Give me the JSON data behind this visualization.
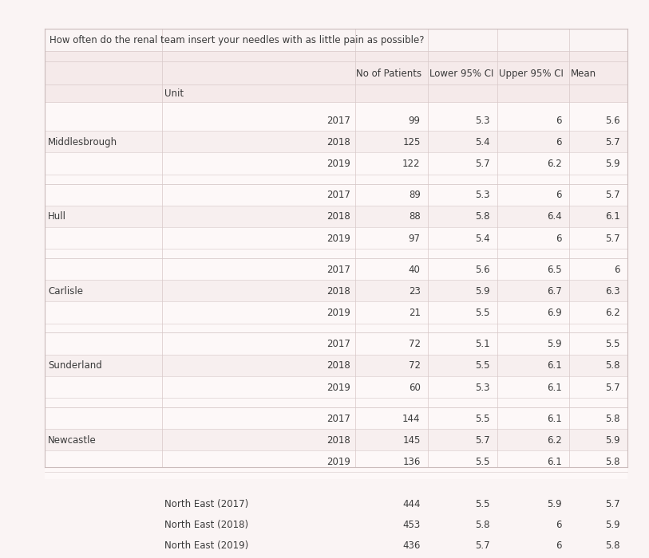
{
  "title": "How often do the renal team insert your needles with as little pain as possible?",
  "col_headers": [
    "No of Patients",
    "Lower 95% CI",
    "Upper 95% CI",
    "Mean"
  ],
  "sub_header_col1": "Unit",
  "bg_color": "#faf4f4",
  "table_bg": "#faf4f4",
  "row_light": "#fdf8f8",
  "row_mid": "#f5eaea",
  "row_dark": "#ede0e0",
  "separator_color": "#ddd0d0",
  "border_color": "#cbbcbc",
  "text_color": "#3a3a3a",
  "font_size": 8.5,
  "rows": [
    {
      "location": "Middlesbrough",
      "year": "2017",
      "patients": "99",
      "lower": "5.3",
      "upper": "6",
      "mean": "5.6"
    },
    {
      "location": "",
      "year": "2018",
      "patients": "125",
      "lower": "5.4",
      "upper": "6",
      "mean": "5.7"
    },
    {
      "location": "",
      "year": "2019",
      "patients": "122",
      "lower": "5.7",
      "upper": "6.2",
      "mean": "5.9"
    },
    {
      "location": "Hull",
      "year": "2017",
      "patients": "89",
      "lower": "5.3",
      "upper": "6",
      "mean": "5.7"
    },
    {
      "location": "",
      "year": "2018",
      "patients": "88",
      "lower": "5.8",
      "upper": "6.4",
      "mean": "6.1"
    },
    {
      "location": "",
      "year": "2019",
      "patients": "97",
      "lower": "5.4",
      "upper": "6",
      "mean": "5.7"
    },
    {
      "location": "Carlisle",
      "year": "2017",
      "patients": "40",
      "lower": "5.6",
      "upper": "6.5",
      "mean": "6"
    },
    {
      "location": "",
      "year": "2018",
      "patients": "23",
      "lower": "5.9",
      "upper": "6.7",
      "mean": "6.3"
    },
    {
      "location": "",
      "year": "2019",
      "patients": "21",
      "lower": "5.5",
      "upper": "6.9",
      "mean": "6.2"
    },
    {
      "location": "Sunderland",
      "year": "2017",
      "patients": "72",
      "lower": "5.1",
      "upper": "5.9",
      "mean": "5.5"
    },
    {
      "location": "",
      "year": "2018",
      "patients": "72",
      "lower": "5.5",
      "upper": "6.1",
      "mean": "5.8"
    },
    {
      "location": "",
      "year": "2019",
      "patients": "60",
      "lower": "5.3",
      "upper": "6.1",
      "mean": "5.7"
    },
    {
      "location": "Newcastle",
      "year": "2017",
      "patients": "144",
      "lower": "5.5",
      "upper": "6.1",
      "mean": "5.8"
    },
    {
      "location": "",
      "year": "2018",
      "patients": "145",
      "lower": "5.7",
      "upper": "6.2",
      "mean": "5.9"
    },
    {
      "location": "",
      "year": "2019",
      "patients": "136",
      "lower": "5.5",
      "upper": "6.1",
      "mean": "5.8"
    }
  ],
  "summary_rows": [
    {
      "label": "North East (2017)",
      "patients": "444",
      "lower": "5.5",
      "upper": "5.9",
      "mean": "5.7"
    },
    {
      "label": "North East (2018)",
      "patients": "453",
      "lower": "5.8",
      "upper": "6",
      "mean": "5.9"
    },
    {
      "label": "North East (2019)",
      "patients": "436",
      "lower": "5.7",
      "upper": "6",
      "mean": "5.8"
    }
  ]
}
